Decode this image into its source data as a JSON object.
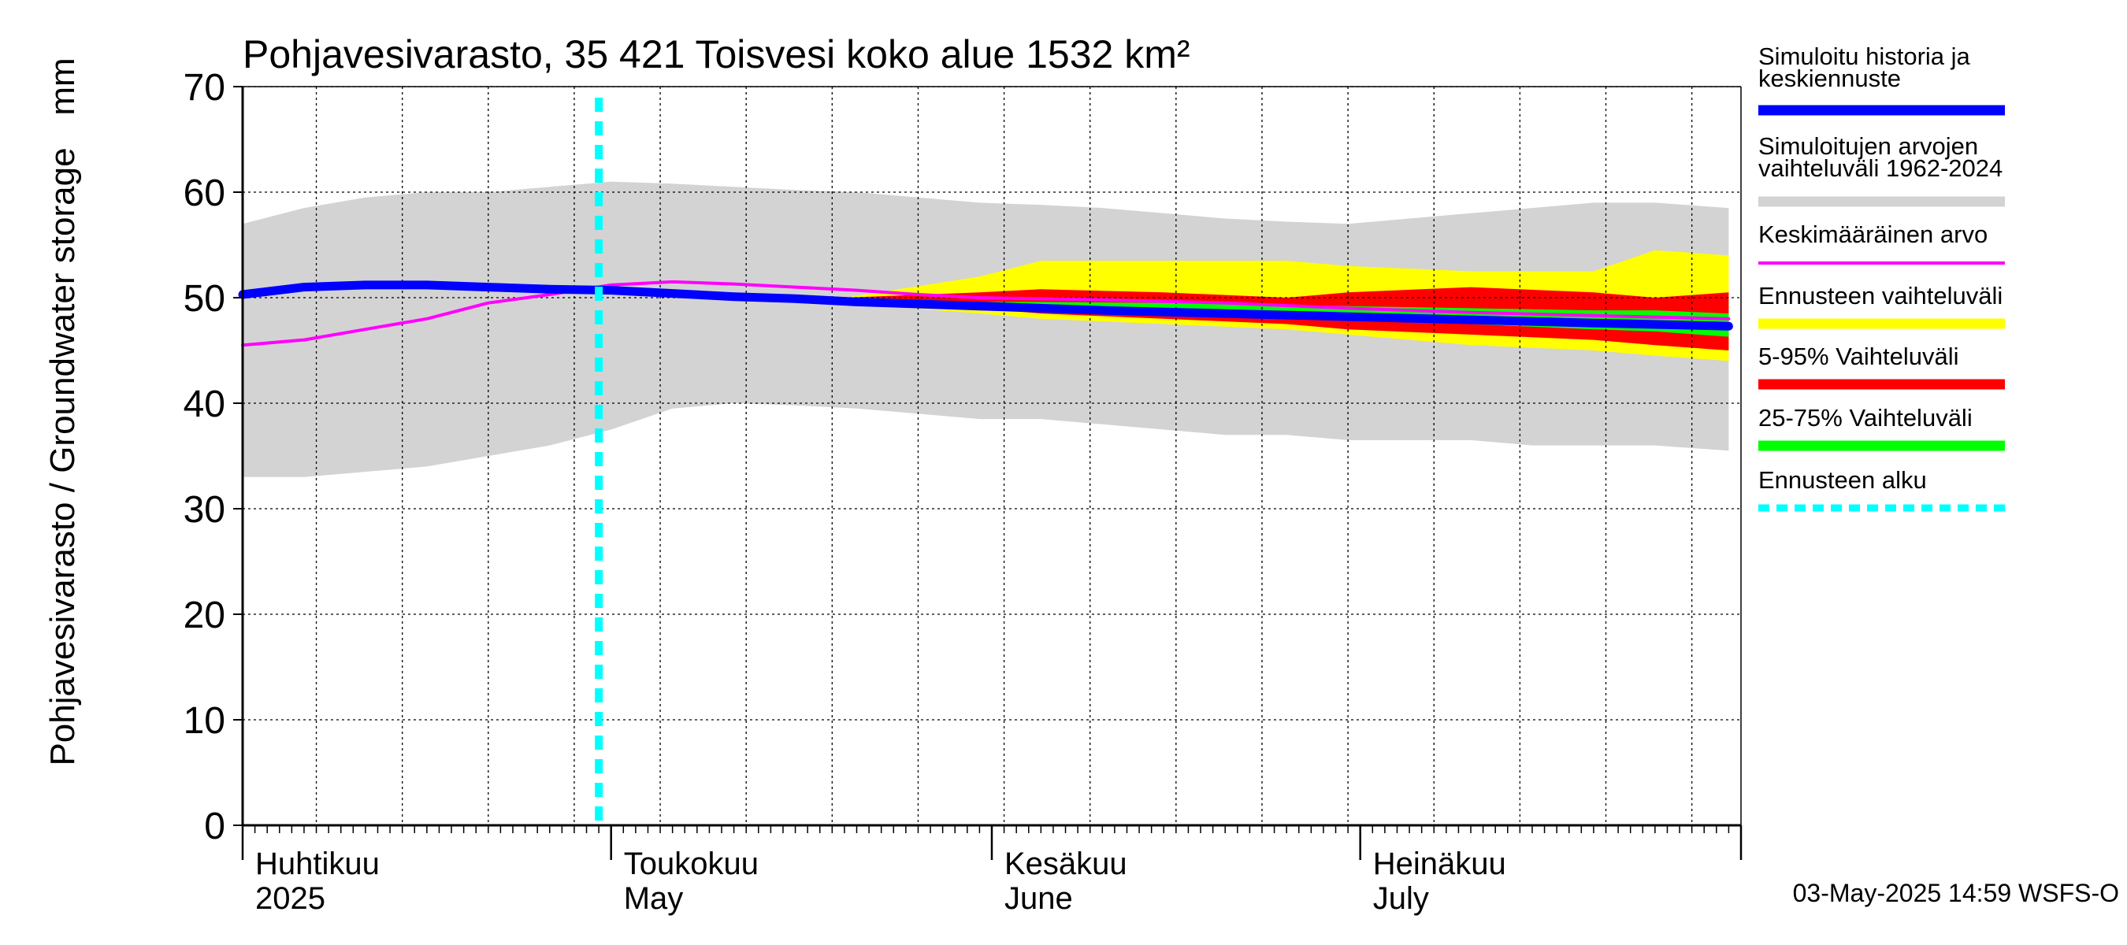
{
  "chart_data": {
    "type": "area",
    "title": "Pohjavesivarasto, 35 421 Toisvesi koko alue 1532 km²",
    "ylabel": "Pohjavesivarasto / Groundwater storage",
    "yunit": "mm",
    "ylim": [
      0,
      70
    ],
    "yticks": [
      0,
      10,
      20,
      30,
      40,
      50,
      60,
      70
    ],
    "xlim": [
      "2025-04-01",
      "2025-07-31"
    ],
    "month_labels": [
      {
        "top": "Huhtikuu",
        "bottom": "2025",
        "date": "2025-04-01"
      },
      {
        "top": "Toukokuu",
        "bottom": "May",
        "date": "2025-05-01"
      },
      {
        "top": "Kesäkuu",
        "bottom": "June",
        "date": "2025-06-01"
      },
      {
        "top": "Heinäkuu",
        "bottom": "July",
        "date": "2025-07-01"
      }
    ],
    "forecast_start": "2025-04-30",
    "grid": true,
    "legend_position": "right",
    "colors": {
      "history": "#0000ff",
      "hist_range": "#d3d3d3",
      "mean": "#ff00ff",
      "forecast_range": "#ffff00",
      "p5_95": "#ff0000",
      "p25_75": "#00ff00",
      "forecast_start": "#00ffff"
    },
    "series": {
      "hist_range": {
        "x": [
          "2025-04-01",
          "2025-04-06",
          "2025-04-11",
          "2025-04-16",
          "2025-04-21",
          "2025-04-26",
          "2025-05-01",
          "2025-05-06",
          "2025-05-11",
          "2025-05-16",
          "2025-05-21",
          "2025-05-26",
          "2025-05-31",
          "2025-06-05",
          "2025-06-10",
          "2025-06-15",
          "2025-06-20",
          "2025-06-25",
          "2025-06-30",
          "2025-07-05",
          "2025-07-10",
          "2025-07-15",
          "2025-07-20",
          "2025-07-25",
          "2025-07-31"
        ],
        "upper": [
          57.0,
          58.5,
          59.5,
          60.0,
          60.0,
          60.5,
          61.0,
          60.8,
          60.5,
          60.2,
          60.0,
          59.5,
          59.0,
          58.8,
          58.5,
          58.0,
          57.5,
          57.2,
          57.0,
          57.5,
          58.0,
          58.5,
          59.0,
          59.0,
          58.5
        ],
        "lower": [
          33.0,
          33.0,
          33.5,
          34.0,
          35.0,
          36.0,
          37.5,
          39.5,
          40.0,
          39.8,
          39.5,
          39.0,
          38.5,
          38.5,
          38.0,
          37.5,
          37.0,
          37.0,
          36.5,
          36.5,
          36.5,
          36.0,
          36.0,
          36.0,
          35.5
        ]
      },
      "forecast_range": {
        "x": [
          "2025-04-30",
          "2025-05-10",
          "2025-05-20",
          "2025-05-31",
          "2025-06-05",
          "2025-06-15",
          "2025-06-25",
          "2025-06-30",
          "2025-07-10",
          "2025-07-20",
          "2025-07-25",
          "2025-07-31"
        ],
        "upper": [
          50.8,
          50.3,
          50.0,
          52.0,
          53.5,
          53.5,
          53.5,
          53.0,
          52.5,
          52.5,
          54.5,
          54.0
        ],
        "lower": [
          50.8,
          50.2,
          49.5,
          48.5,
          48.0,
          47.5,
          47.0,
          46.5,
          45.5,
          45.0,
          44.5,
          44.0
        ]
      },
      "p5_95": {
        "x": [
          "2025-04-30",
          "2025-05-10",
          "2025-05-20",
          "2025-05-31",
          "2025-06-05",
          "2025-06-15",
          "2025-06-25",
          "2025-06-30",
          "2025-07-10",
          "2025-07-20",
          "2025-07-25",
          "2025-07-31"
        ],
        "upper": [
          50.8,
          50.3,
          50.0,
          50.5,
          50.8,
          50.5,
          50.0,
          50.5,
          51.0,
          50.5,
          50.0,
          50.5
        ],
        "lower": [
          50.8,
          50.2,
          49.6,
          49.0,
          48.5,
          48.0,
          47.5,
          47.0,
          46.5,
          46.0,
          45.5,
          45.0
        ]
      },
      "p25_75": {
        "x": [
          "2025-04-30",
          "2025-05-10",
          "2025-05-20",
          "2025-05-31",
          "2025-06-05",
          "2025-06-15",
          "2025-06-25",
          "2025-06-30",
          "2025-07-10",
          "2025-07-20",
          "2025-07-25",
          "2025-07-31"
        ],
        "upper": [
          50.8,
          50.3,
          49.9,
          49.6,
          49.6,
          49.5,
          49.3,
          49.2,
          49.0,
          48.8,
          48.8,
          48.5
        ],
        "lower": [
          50.8,
          50.2,
          49.7,
          49.3,
          49.0,
          48.7,
          48.3,
          48.0,
          47.5,
          47.0,
          46.8,
          46.3
        ]
      },
      "mean": {
        "x": [
          "2025-04-01",
          "2025-04-06",
          "2025-04-11",
          "2025-04-16",
          "2025-04-21",
          "2025-04-26",
          "2025-05-01",
          "2025-05-06",
          "2025-05-11",
          "2025-05-16",
          "2025-05-21",
          "2025-05-26",
          "2025-05-31",
          "2025-06-10",
          "2025-06-20",
          "2025-06-30",
          "2025-07-10",
          "2025-07-20",
          "2025-07-31"
        ],
        "y": [
          45.5,
          46.0,
          47.0,
          48.0,
          49.5,
          50.3,
          51.2,
          51.5,
          51.3,
          51.0,
          50.7,
          50.3,
          50.0,
          49.8,
          49.5,
          49.0,
          48.6,
          48.3,
          48.0
        ]
      },
      "history": {
        "x": [
          "2025-04-01",
          "2025-04-06",
          "2025-04-11",
          "2025-04-16",
          "2025-04-21",
          "2025-04-26",
          "2025-05-01",
          "2025-05-06",
          "2025-05-11",
          "2025-05-16",
          "2025-05-21",
          "2025-05-26",
          "2025-05-31",
          "2025-06-10",
          "2025-06-20",
          "2025-06-30",
          "2025-07-10",
          "2025-07-20",
          "2025-07-31"
        ],
        "y": [
          50.3,
          51.0,
          51.2,
          51.2,
          51.0,
          50.8,
          50.7,
          50.4,
          50.1,
          49.9,
          49.6,
          49.4,
          49.2,
          48.8,
          48.5,
          48.2,
          47.9,
          47.6,
          47.3
        ]
      }
    }
  },
  "legend": [
    {
      "key": "history",
      "lines": [
        "Simuloitu historia ja",
        "keskiennuste"
      ]
    },
    {
      "key": "hist_range",
      "lines": [
        "Simuloitujen arvojen",
        "vaihteluväli 1962-2024"
      ]
    },
    {
      "key": "mean",
      "lines": [
        "Keskimääräinen arvo"
      ]
    },
    {
      "key": "forecast_range",
      "lines": [
        "Ennusteen vaihteluväli"
      ]
    },
    {
      "key": "p5_95",
      "lines": [
        "5-95% Vaihteluväli"
      ]
    },
    {
      "key": "p25_75",
      "lines": [
        "25-75% Vaihteluväli"
      ]
    },
    {
      "key": "forecast_start",
      "lines": [
        "Ennusteen alku"
      ]
    }
  ],
  "footer": "03-May-2025 14:59 WSFS-O"
}
